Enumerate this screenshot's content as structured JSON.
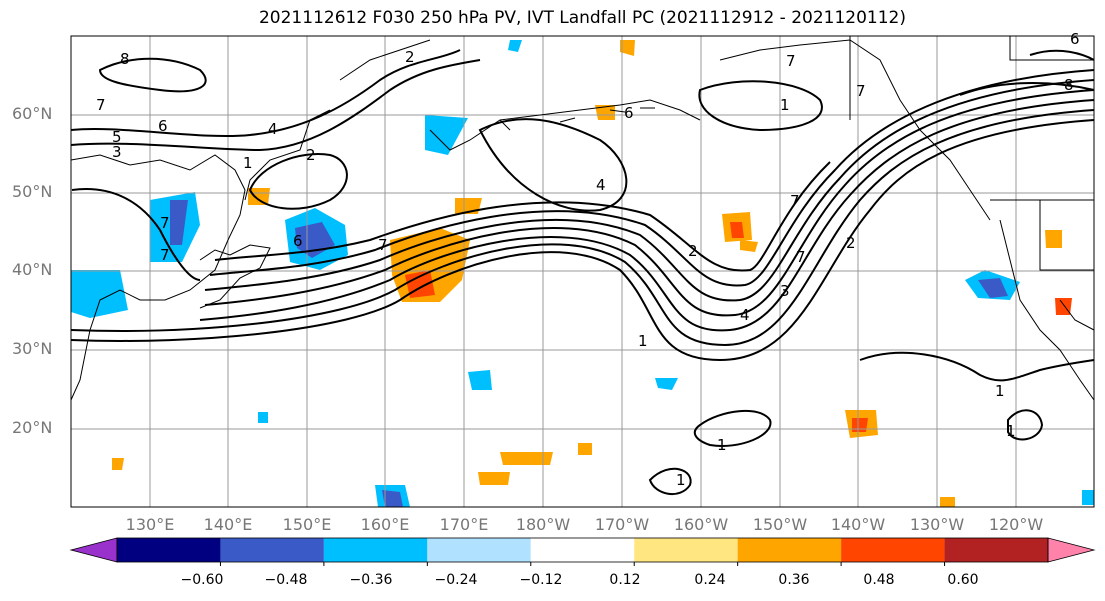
{
  "title": "2021112612 F030 250 hPa PV, IVT Landfall PC (2021112912 - 2021120112)",
  "map": {
    "lat_labels": [
      "60°N",
      "50°N",
      "40°N",
      "30°N",
      "20°N"
    ],
    "lon_labels": [
      "130°E",
      "140°E",
      "150°E",
      "160°E",
      "170°E",
      "180°W",
      "170°W",
      "160°W",
      "150°W",
      "140°W",
      "130°W",
      "120°W"
    ],
    "contour_labels": [
      "8",
      "7",
      "6",
      "5",
      "3",
      "4",
      "2",
      "1",
      "2",
      "7",
      "6",
      "7",
      "4",
      "2",
      "7",
      "1",
      "7",
      "6",
      "1",
      "7",
      "4",
      "3",
      "2",
      "7",
      "1",
      "1",
      "1",
      "1",
      "8",
      "7",
      "6"
    ]
  },
  "colorbar": {
    "colors": [
      "#9932cc",
      "#000080",
      "#3a5bc7",
      "#00bfff",
      "#b0e2ff",
      "#ffffff",
      "#ffe680",
      "#ffa500",
      "#ff4500",
      "#b22222",
      "#ff82ab"
    ],
    "tick_labels": [
      "−0.60",
      "−0.48",
      "−0.36",
      "−0.24",
      "−0.12",
      "0.12",
      "0.24",
      "0.36",
      "0.48",
      "0.60"
    ]
  }
}
